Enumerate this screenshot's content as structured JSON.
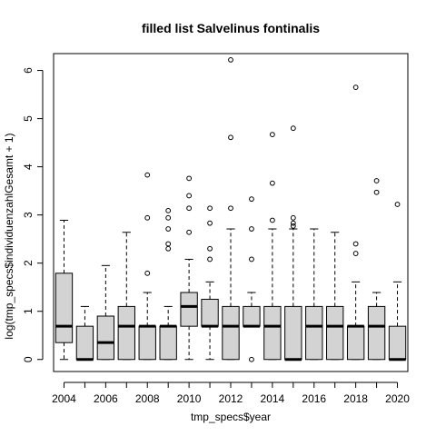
{
  "chart_data": {
    "type": "boxplot",
    "title": "filled list Salvelinus fontinalis",
    "xlabel": "tmp_specs$year",
    "ylabel": "log(tmp_specs$individuenzahlGesamt + 1)",
    "ylim": [
      -0.25,
      6.35
    ],
    "y_ticks": [
      0,
      1,
      2,
      3,
      4,
      5,
      6
    ],
    "x_tick_labels": [
      "2004",
      "2006",
      "2008",
      "2010",
      "2012",
      "2014",
      "2016",
      "2018",
      "2020"
    ],
    "grid": false,
    "box_fill": "#d3d3d3",
    "boxes": [
      {
        "year": "2004",
        "whisker_low": 0.0,
        "q1": 0.35,
        "median": 0.69,
        "q3": 1.79,
        "whisker_high": 2.89,
        "outliers": []
      },
      {
        "year": "2005",
        "whisker_low": 0.0,
        "q1": 0.0,
        "median": 0.0,
        "q3": 0.69,
        "whisker_high": 1.1,
        "outliers": []
      },
      {
        "year": "2006",
        "whisker_low": 0.0,
        "q1": 0.0,
        "median": 0.35,
        "q3": 0.9,
        "whisker_high": 1.95,
        "outliers": []
      },
      {
        "year": "2007",
        "whisker_low": 0.0,
        "q1": 0.0,
        "median": 0.69,
        "q3": 1.1,
        "whisker_high": 2.64,
        "outliers": []
      },
      {
        "year": "2008",
        "whisker_low": 0.0,
        "q1": 0.0,
        "median": 0.69,
        "q3": 0.69,
        "whisker_high": 1.39,
        "outliers": [
          1.79,
          2.94,
          3.83
        ]
      },
      {
        "year": "2009",
        "whisker_low": 0.0,
        "q1": 0.0,
        "median": 0.69,
        "q3": 0.69,
        "whisker_high": 1.1,
        "outliers": [
          2.3,
          2.4,
          2.71,
          2.94,
          3.09
        ]
      },
      {
        "year": "2010",
        "whisker_low": 0.0,
        "q1": 0.69,
        "median": 1.1,
        "q3": 1.39,
        "whisker_high": 2.08,
        "outliers": [
          2.64,
          3.14,
          3.4,
          3.76
        ]
      },
      {
        "year": "2011",
        "whisker_low": 0.0,
        "q1": 0.69,
        "median": 0.69,
        "q3": 1.25,
        "whisker_high": 1.61,
        "outliers": [
          2.08,
          2.3,
          2.83,
          3.14
        ]
      },
      {
        "year": "2012",
        "whisker_low": 0.0,
        "q1": 0.0,
        "median": 0.69,
        "q3": 1.1,
        "whisker_high": 2.71,
        "outliers": [
          3.14,
          4.61,
          6.22
        ]
      },
      {
        "year": "2013",
        "whisker_low": 0.69,
        "q1": 0.69,
        "median": 0.69,
        "q3": 1.1,
        "whisker_high": 1.39,
        "outliers": [
          0.0,
          2.08,
          2.71,
          3.33
        ]
      },
      {
        "year": "2014",
        "whisker_low": 0.0,
        "q1": 0.0,
        "median": 0.69,
        "q3": 1.1,
        "whisker_high": 2.71,
        "outliers": [
          2.89,
          3.66,
          4.67
        ]
      },
      {
        "year": "2015",
        "whisker_low": 0.0,
        "q1": 0.0,
        "median": 0.0,
        "q3": 1.1,
        "whisker_high": 2.71,
        "outliers": [
          2.77,
          2.83,
          2.94,
          4.8
        ]
      },
      {
        "year": "2016",
        "whisker_low": 0.0,
        "q1": 0.0,
        "median": 0.69,
        "q3": 1.1,
        "whisker_high": 2.71,
        "outliers": []
      },
      {
        "year": "2017",
        "whisker_low": 0.0,
        "q1": 0.0,
        "median": 0.69,
        "q3": 1.1,
        "whisker_high": 2.64,
        "outliers": []
      },
      {
        "year": "2018",
        "whisker_low": 0.0,
        "q1": 0.0,
        "median": 0.69,
        "q3": 0.69,
        "whisker_high": 1.61,
        "outliers": [
          2.2,
          2.4,
          5.65
        ]
      },
      {
        "year": "2019",
        "whisker_low": 0.0,
        "q1": 0.0,
        "median": 0.69,
        "q3": 1.1,
        "whisker_high": 1.39,
        "outliers": [
          3.47,
          3.71
        ]
      },
      {
        "year": "2020",
        "whisker_low": 0.0,
        "q1": 0.0,
        "median": 0.0,
        "q3": 0.69,
        "whisker_high": 1.61,
        "outliers": [
          3.22
        ]
      }
    ]
  }
}
